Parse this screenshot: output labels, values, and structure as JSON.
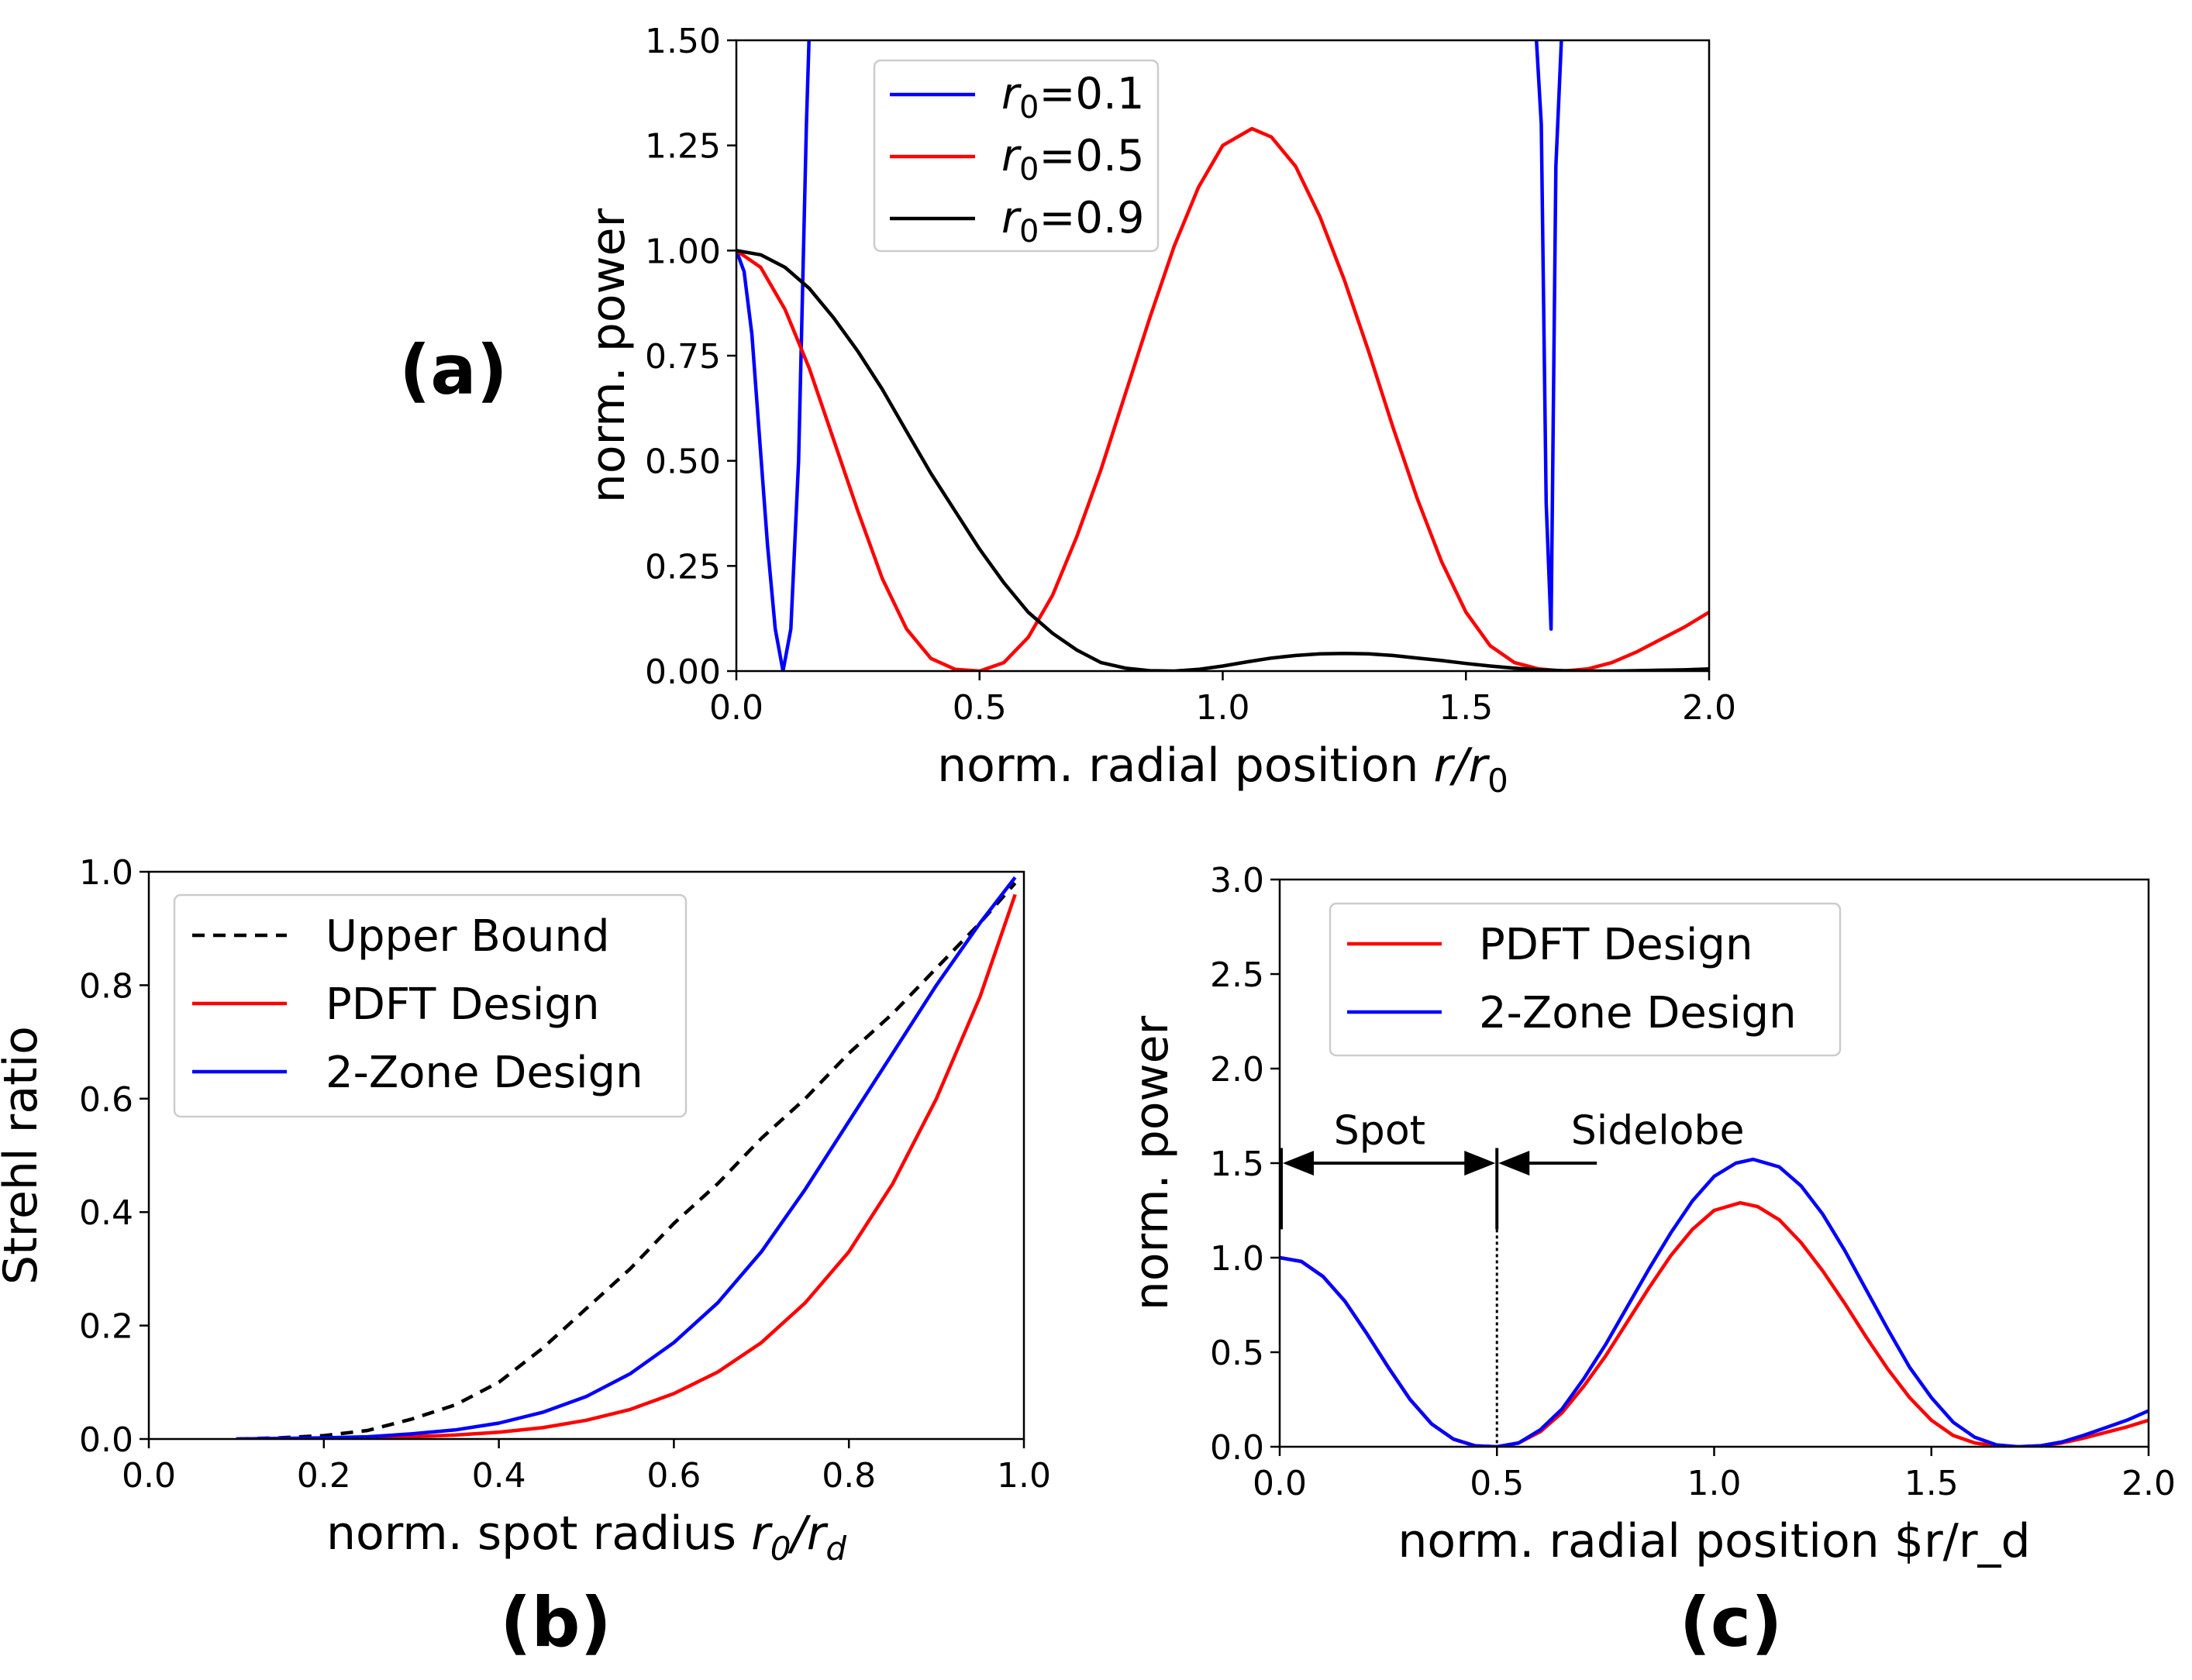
{
  "chart_data": [
    {
      "id": "a",
      "type": "line",
      "panel_label": "(a)",
      "title": "",
      "xlabel": {
        "prefix": "norm. radial position ",
        "var": "r",
        "sep": "/",
        "var2": "r",
        "sub2": "0"
      },
      "ylabel": "norm. power",
      "xlim": [
        0,
        2.0
      ],
      "ylim": [
        0,
        1.5
      ],
      "xticks": [
        0,
        0.5,
        1.0,
        1.5,
        2.0
      ],
      "xtick_labels": [
        "0.0",
        "0.5",
        "1.0",
        "1.5",
        "2.0"
      ],
      "yticks": [
        0,
        0.25,
        0.5,
        0.75,
        1.0,
        1.25,
        1.5
      ],
      "ytick_labels": [
        "0.00",
        "0.25",
        "0.50",
        "0.75",
        "1.00",
        "1.25",
        "1.50"
      ],
      "legend_position": "top-center",
      "series": [
        {
          "name": "r0=0.1",
          "label": {
            "var": "r",
            "sub": "0",
            "rest": "=0.1"
          },
          "color": "#0000ff",
          "x": [
            0,
            0.016,
            0.032,
            0.048,
            0.064,
            0.08,
            0.096,
            0.112,
            0.128,
            0.144,
            0.152,
            1.64,
            1.655,
            1.665,
            1.675,
            1.685,
            1.7
          ],
          "y": [
            1.0,
            0.95,
            0.8,
            0.55,
            0.3,
            0.1,
            0.0,
            0.1,
            0.5,
            1.3,
            1.6,
            1.6,
            1.3,
            0.4,
            0.1,
            1.2,
            1.6
          ]
        },
        {
          "name": "r0=0.5",
          "label": {
            "var": "r",
            "sub": "0",
            "rest": "=0.5"
          },
          "color": "#ff0000",
          "x": [
            0,
            0.05,
            0.1,
            0.15,
            0.2,
            0.25,
            0.3,
            0.35,
            0.4,
            0.45,
            0.5,
            0.55,
            0.6,
            0.65,
            0.7,
            0.75,
            0.8,
            0.85,
            0.9,
            0.95,
            1.0,
            1.06,
            1.1,
            1.15,
            1.2,
            1.25,
            1.3,
            1.35,
            1.4,
            1.45,
            1.5,
            1.55,
            1.6,
            1.65,
            1.7,
            1.75,
            1.8,
            1.85,
            1.9,
            1.95,
            2.0
          ],
          "y": [
            1.0,
            0.96,
            0.86,
            0.72,
            0.55,
            0.38,
            0.22,
            0.1,
            0.03,
            0.004,
            0.0,
            0.02,
            0.08,
            0.18,
            0.32,
            0.48,
            0.66,
            0.84,
            1.01,
            1.15,
            1.25,
            1.29,
            1.27,
            1.2,
            1.08,
            0.93,
            0.76,
            0.58,
            0.41,
            0.26,
            0.14,
            0.06,
            0.02,
            0.005,
            0.0,
            0.005,
            0.02,
            0.045,
            0.075,
            0.105,
            0.14
          ]
        },
        {
          "name": "r0=0.9",
          "label": {
            "var": "r",
            "sub": "0",
            "rest": "=0.9"
          },
          "color": "#000000",
          "x": [
            0,
            0.05,
            0.1,
            0.15,
            0.2,
            0.25,
            0.3,
            0.35,
            0.4,
            0.45,
            0.5,
            0.55,
            0.6,
            0.65,
            0.7,
            0.75,
            0.8,
            0.85,
            0.9,
            0.95,
            1.0,
            1.05,
            1.1,
            1.15,
            1.2,
            1.25,
            1.3,
            1.35,
            1.4,
            1.45,
            1.5,
            1.55,
            1.6,
            1.65,
            1.7,
            1.75,
            1.8,
            1.85,
            1.9,
            1.95,
            2.0
          ],
          "y": [
            1.0,
            0.99,
            0.96,
            0.91,
            0.84,
            0.76,
            0.67,
            0.57,
            0.47,
            0.38,
            0.29,
            0.21,
            0.14,
            0.09,
            0.05,
            0.02,
            0.007,
            0.001,
            0.0,
            0.004,
            0.012,
            0.022,
            0.031,
            0.037,
            0.041,
            0.042,
            0.041,
            0.037,
            0.031,
            0.025,
            0.018,
            0.012,
            0.007,
            0.003,
            0.001,
            0.0,
            0.0,
            0.001,
            0.002,
            0.003,
            0.005
          ]
        }
      ]
    },
    {
      "id": "b",
      "type": "line",
      "panel_label": "(b)",
      "title": "",
      "xlabel": {
        "prefix": "norm. spot radius ",
        "var": "r",
        "sub": "0",
        "sep": "/",
        "var2": "r",
        "sub2": "d"
      },
      "ylabel": "Strehl ratio",
      "xlim": [
        0,
        1.0
      ],
      "ylim": [
        0,
        1.0
      ],
      "xticks": [
        0,
        0.2,
        0.4,
        0.6,
        0.8,
        1.0
      ],
      "xtick_labels": [
        "0.0",
        "0.2",
        "0.4",
        "0.6",
        "0.8",
        "1.0"
      ],
      "yticks": [
        0,
        0.2,
        0.4,
        0.6,
        0.8,
        1.0
      ],
      "ytick_labels": [
        "0.0",
        "0.2",
        "0.4",
        "0.6",
        "0.8",
        "1.0"
      ],
      "legend_position": "upper-left",
      "series": [
        {
          "name": "Upper Bound",
          "color": "#000000",
          "dash": true,
          "x": [
            0.1,
            0.15,
            0.2,
            0.25,
            0.3,
            0.35,
            0.4,
            0.45,
            0.5,
            0.55,
            0.6,
            0.65,
            0.7,
            0.75,
            0.8,
            0.85,
            0.9,
            0.95,
            0.99
          ],
          "y": [
            0.0,
            0.002,
            0.006,
            0.015,
            0.035,
            0.06,
            0.1,
            0.16,
            0.23,
            0.3,
            0.38,
            0.45,
            0.53,
            0.6,
            0.68,
            0.75,
            0.83,
            0.91,
            0.98
          ]
        },
        {
          "name": "PDFT Design",
          "color": "#ff0000",
          "x": [
            0.1,
            0.15,
            0.2,
            0.25,
            0.3,
            0.35,
            0.4,
            0.45,
            0.5,
            0.55,
            0.6,
            0.65,
            0.7,
            0.75,
            0.8,
            0.85,
            0.9,
            0.95,
            0.99
          ],
          "y": [
            0.0,
            0.0005,
            0.001,
            0.002,
            0.004,
            0.007,
            0.012,
            0.02,
            0.033,
            0.052,
            0.08,
            0.118,
            0.17,
            0.24,
            0.33,
            0.45,
            0.6,
            0.78,
            0.96
          ]
        },
        {
          "name": "2-Zone Design",
          "color": "#0000ff",
          "x": [
            0.1,
            0.15,
            0.2,
            0.25,
            0.3,
            0.35,
            0.4,
            0.45,
            0.5,
            0.55,
            0.6,
            0.65,
            0.7,
            0.75,
            0.8,
            0.85,
            0.9,
            0.95,
            0.99
          ],
          "y": [
            0.0,
            0.001,
            0.002,
            0.004,
            0.009,
            0.016,
            0.028,
            0.047,
            0.075,
            0.115,
            0.17,
            0.24,
            0.33,
            0.44,
            0.56,
            0.68,
            0.8,
            0.91,
            0.99
          ]
        }
      ]
    },
    {
      "id": "c",
      "type": "line",
      "panel_label": "(c)",
      "title": "",
      "xlabel": {
        "text": "norm. radial position $r/r_d"
      },
      "ylabel": "norm. power",
      "xlim": [
        0,
        2.0
      ],
      "ylim": [
        0,
        3.0
      ],
      "xticks": [
        0,
        0.5,
        1.0,
        1.5,
        2.0
      ],
      "xtick_labels": [
        "0.0",
        "0.5",
        "1.0",
        "1.5",
        "2.0"
      ],
      "yticks": [
        0,
        0.5,
        1.0,
        1.5,
        2.0,
        2.5,
        3.0
      ],
      "ytick_labels": [
        "0.0",
        "0.5",
        "1.0",
        "1.5",
        "2.0",
        "2.5",
        "3.0"
      ],
      "legend_position": "upper-left",
      "annotations": [
        {
          "text": "Spot",
          "x": 0.23,
          "y": 1.6
        },
        {
          "text": "Sidelobe",
          "x": 0.87,
          "y": 1.6
        }
      ],
      "series": [
        {
          "name": "PDFT Design",
          "color": "#ff0000",
          "x": [
            0,
            0.05,
            0.1,
            0.15,
            0.2,
            0.25,
            0.3,
            0.35,
            0.4,
            0.45,
            0.5,
            0.55,
            0.6,
            0.65,
            0.7,
            0.75,
            0.8,
            0.85,
            0.9,
            0.95,
            1.0,
            1.06,
            1.1,
            1.15,
            1.2,
            1.25,
            1.3,
            1.35,
            1.4,
            1.45,
            1.5,
            1.55,
            1.6,
            1.65,
            1.7,
            1.75,
            1.8,
            1.85,
            1.9,
            1.95,
            2.0
          ],
          "y": [
            1.0,
            0.98,
            0.9,
            0.77,
            0.6,
            0.42,
            0.25,
            0.12,
            0.04,
            0.005,
            0.0,
            0.02,
            0.08,
            0.18,
            0.32,
            0.48,
            0.66,
            0.84,
            1.01,
            1.15,
            1.25,
            1.29,
            1.27,
            1.2,
            1.08,
            0.93,
            0.76,
            0.58,
            0.41,
            0.26,
            0.14,
            0.06,
            0.02,
            0.005,
            0.0,
            0.005,
            0.02,
            0.045,
            0.075,
            0.105,
            0.14
          ]
        },
        {
          "name": "2-Zone Design",
          "color": "#0000ff",
          "x": [
            0,
            0.05,
            0.1,
            0.15,
            0.2,
            0.25,
            0.3,
            0.35,
            0.4,
            0.45,
            0.5,
            0.55,
            0.6,
            0.65,
            0.7,
            0.75,
            0.8,
            0.85,
            0.9,
            0.95,
            1.0,
            1.05,
            1.09,
            1.15,
            1.2,
            1.25,
            1.3,
            1.35,
            1.4,
            1.45,
            1.5,
            1.55,
            1.6,
            1.65,
            1.7,
            1.75,
            1.8,
            1.85,
            1.9,
            1.95,
            2.0
          ],
          "y": [
            1.0,
            0.98,
            0.9,
            0.77,
            0.6,
            0.42,
            0.25,
            0.12,
            0.04,
            0.005,
            0.0,
            0.02,
            0.09,
            0.2,
            0.36,
            0.54,
            0.74,
            0.94,
            1.13,
            1.3,
            1.43,
            1.5,
            1.52,
            1.48,
            1.38,
            1.23,
            1.04,
            0.83,
            0.62,
            0.42,
            0.26,
            0.13,
            0.05,
            0.01,
            0.0,
            0.005,
            0.025,
            0.06,
            0.1,
            0.14,
            0.19
          ]
        }
      ]
    }
  ]
}
